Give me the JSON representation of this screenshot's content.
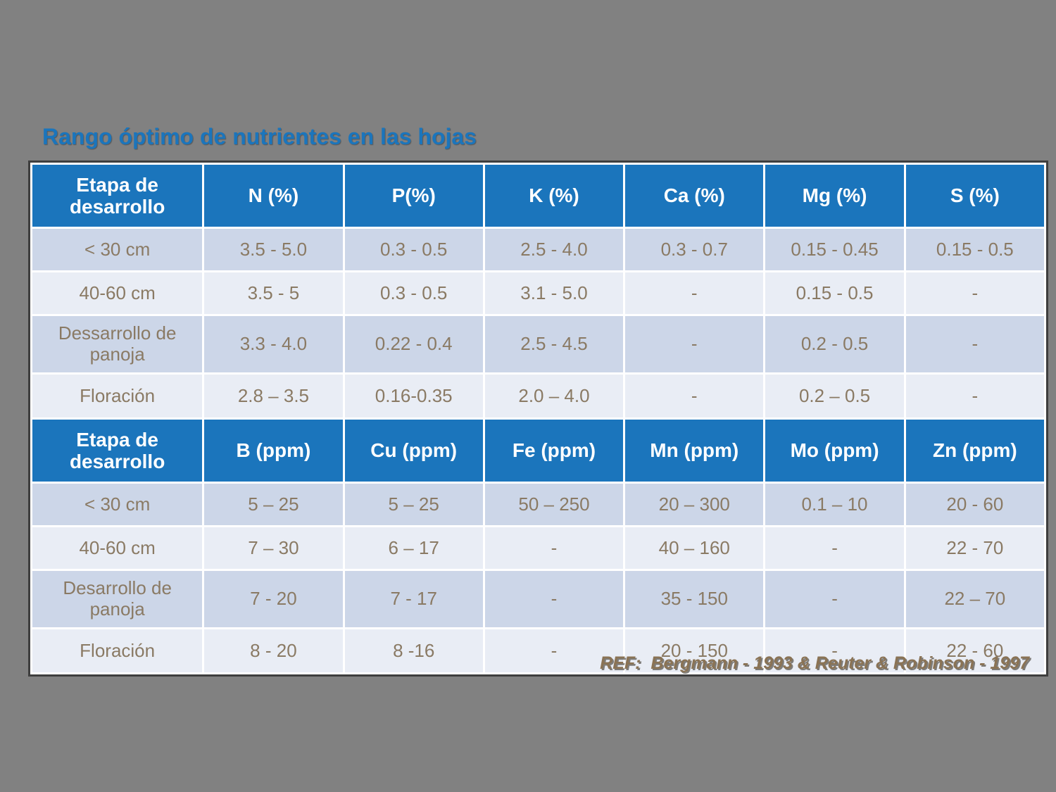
{
  "title": "Rango óptimo de nutrientes en las hojas",
  "colors": {
    "background": "#818181",
    "header_bg": "#1b75bc",
    "row_odd_bg": "#ccd6e8",
    "row_even_bg": "#e9edf5",
    "cell_text": "#8a7a64",
    "title_text": "#1b75bc",
    "ref_text": "#8a7355"
  },
  "macro_table": {
    "headers": [
      "Etapa de desarrollo",
      "N (%)",
      "P(%)",
      "K (%)",
      "Ca (%)",
      "Mg (%)",
      "S (%)"
    ],
    "rows": [
      [
        "< 30 cm",
        "3.5 - 5.0",
        "0.3 - 0.5",
        "2.5 - 4.0",
        "0.3 - 0.7",
        "0.15 - 0.45",
        "0.15 - 0.5"
      ],
      [
        "40-60 cm",
        "3.5 - 5",
        "0.3 - 0.5",
        "3.1 - 5.0",
        "-",
        "0.15 - 0.5",
        "-"
      ],
      [
        "Dessarrollo de panoja",
        "3.3 - 4.0",
        "0.22 - 0.4",
        "2.5 - 4.5",
        "-",
        "0.2 - 0.5",
        "-"
      ],
      [
        "Floración",
        "2.8 – 3.5",
        "0.16-0.35",
        "2.0 – 4.0",
        "-",
        "0.2 – 0.5",
        "-"
      ]
    ]
  },
  "micro_table": {
    "headers": [
      "Etapa de desarrollo",
      "B (ppm)",
      "Cu (ppm)",
      "Fe (ppm)",
      "Mn (ppm)",
      "Mo (ppm)",
      "Zn (ppm)"
    ],
    "rows": [
      [
        "< 30 cm",
        "5 – 25",
        "5 – 25",
        "50 – 250",
        "20 – 300",
        "0.1 – 10",
        "20 - 60"
      ],
      [
        "40-60 cm",
        "7 – 30",
        "6 – 17",
        "-",
        "40 – 160",
        "-",
        "22 - 70"
      ],
      [
        "Desarrollo de panoja",
        "7 - 20",
        "7 - 17",
        "-",
        "35 - 150",
        "-",
        "22 – 70"
      ],
      [
        "Floración",
        "8 - 20",
        "8 -16",
        "-",
        "20 - 150",
        "-",
        "22 - 60"
      ]
    ]
  },
  "reference": "REF:  Bergmann - 1993 & Reuter & Robinson - 1997"
}
